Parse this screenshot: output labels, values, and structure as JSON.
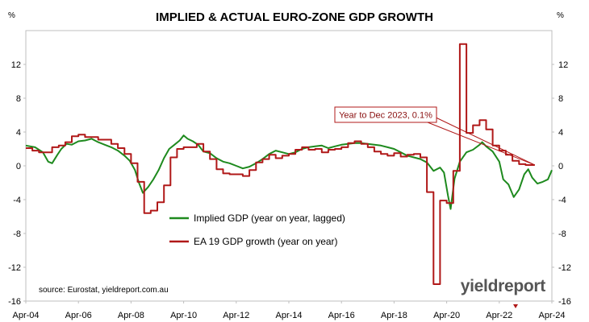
{
  "chart_data": {
    "type": "line",
    "title": "IMPLIED & ACTUAL EURO-ZONE GDP GROWTH",
    "left_axis_unit": "%",
    "right_axis_unit": "%",
    "ylim": [
      -16,
      16
    ],
    "yticks": [
      -16,
      -12,
      -8,
      -4,
      0,
      4,
      8,
      12
    ],
    "xlim": [
      2004.25,
      2024.25
    ],
    "xticks": [
      {
        "x": 2004.25,
        "label": "Apr-04"
      },
      {
        "x": 2006.25,
        "label": "Apr-06"
      },
      {
        "x": 2008.25,
        "label": "Apr-08"
      },
      {
        "x": 2010.25,
        "label": "Apr-10"
      },
      {
        "x": 2012.25,
        "label": "Apr-12"
      },
      {
        "x": 2014.25,
        "label": "Apr-14"
      },
      {
        "x": 2016.25,
        "label": "Apr-16"
      },
      {
        "x": 2018.25,
        "label": "Apr-18"
      },
      {
        "x": 2020.25,
        "label": "Apr-20"
      },
      {
        "x": 2022.25,
        "label": "Apr-22"
      },
      {
        "x": 2024.25,
        "label": "Apr-24"
      }
    ],
    "grid": false,
    "legend_position": "lower-left",
    "series": [
      {
        "name": "Implied GDP (year on year, lagged)",
        "color": "#1e8a1e",
        "points": [
          [
            2004.25,
            2.4
          ],
          [
            2004.6,
            2.2
          ],
          [
            2004.9,
            1.6
          ],
          [
            2005.1,
            0.5
          ],
          [
            2005.25,
            0.3
          ],
          [
            2005.45,
            1.3
          ],
          [
            2005.6,
            2.0
          ],
          [
            2005.8,
            2.6
          ],
          [
            2006.0,
            2.5
          ],
          [
            2006.25,
            2.9
          ],
          [
            2006.5,
            3.0
          ],
          [
            2006.75,
            3.2
          ],
          [
            2007.0,
            2.8
          ],
          [
            2007.25,
            2.5
          ],
          [
            2007.5,
            2.2
          ],
          [
            2007.75,
            1.8
          ],
          [
            2008.0,
            1.2
          ],
          [
            2008.2,
            0.6
          ],
          [
            2008.4,
            -0.5
          ],
          [
            2008.55,
            -2.0
          ],
          [
            2008.7,
            -3.2
          ],
          [
            2008.9,
            -2.5
          ],
          [
            2009.1,
            -1.6
          ],
          [
            2009.3,
            -0.5
          ],
          [
            2009.5,
            0.9
          ],
          [
            2009.7,
            2.0
          ],
          [
            2009.9,
            2.5
          ],
          [
            2010.1,
            3.0
          ],
          [
            2010.25,
            3.6
          ],
          [
            2010.4,
            3.2
          ],
          [
            2010.6,
            2.9
          ],
          [
            2010.8,
            2.5
          ],
          [
            2011.0,
            1.7
          ],
          [
            2011.25,
            1.5
          ],
          [
            2011.5,
            0.9
          ],
          [
            2011.75,
            0.5
          ],
          [
            2012.0,
            0.3
          ],
          [
            2012.25,
            0.0
          ],
          [
            2012.5,
            -0.3
          ],
          [
            2012.75,
            -0.1
          ],
          [
            2013.0,
            0.3
          ],
          [
            2013.25,
            0.8
          ],
          [
            2013.5,
            1.4
          ],
          [
            2013.75,
            1.8
          ],
          [
            2014.0,
            1.6
          ],
          [
            2014.25,
            1.4
          ],
          [
            2014.5,
            1.6
          ],
          [
            2014.75,
            2.0
          ],
          [
            2015.0,
            2.2
          ],
          [
            2015.25,
            2.3
          ],
          [
            2015.5,
            2.4
          ],
          [
            2015.75,
            2.1
          ],
          [
            2016.0,
            2.3
          ],
          [
            2016.25,
            2.5
          ],
          [
            2016.5,
            2.6
          ],
          [
            2016.75,
            2.7
          ],
          [
            2017.0,
            2.7
          ],
          [
            2017.25,
            2.6
          ],
          [
            2017.5,
            2.5
          ],
          [
            2017.75,
            2.4
          ],
          [
            2018.0,
            2.2
          ],
          [
            2018.25,
            2.0
          ],
          [
            2018.5,
            1.6
          ],
          [
            2018.75,
            1.2
          ],
          [
            2019.0,
            1.0
          ],
          [
            2019.25,
            0.8
          ],
          [
            2019.5,
            0.4
          ],
          [
            2019.75,
            -0.6
          ],
          [
            2020.0,
            -0.2
          ],
          [
            2020.15,
            -0.8
          ],
          [
            2020.3,
            -3.5
          ],
          [
            2020.4,
            -5.1
          ],
          [
            2020.55,
            -1.5
          ],
          [
            2020.75,
            0.5
          ],
          [
            2021.0,
            1.6
          ],
          [
            2021.25,
            1.9
          ],
          [
            2021.5,
            2.5
          ],
          [
            2021.6,
            2.8
          ],
          [
            2021.75,
            2.3
          ],
          [
            2022.0,
            1.7
          ],
          [
            2022.25,
            0.5
          ],
          [
            2022.4,
            -1.6
          ],
          [
            2022.6,
            -2.2
          ],
          [
            2022.8,
            -3.7
          ],
          [
            2023.0,
            -2.8
          ],
          [
            2023.2,
            -1.0
          ],
          [
            2023.35,
            -0.4
          ],
          [
            2023.5,
            -1.4
          ],
          [
            2023.7,
            -2.1
          ],
          [
            2023.9,
            -1.9
          ],
          [
            2024.1,
            -1.6
          ],
          [
            2024.25,
            -0.5
          ]
        ]
      },
      {
        "name": "EA 19 GDP growth (year on year)",
        "color": "#b01818",
        "points": [
          [
            2004.25,
            2.1
          ],
          [
            2004.5,
            2.1
          ],
          [
            2004.5,
            1.8
          ],
          [
            2004.75,
            1.8
          ],
          [
            2004.75,
            1.6
          ],
          [
            2005.25,
            1.6
          ],
          [
            2005.25,
            2.2
          ],
          [
            2005.5,
            2.2
          ],
          [
            2005.5,
            2.4
          ],
          [
            2005.75,
            2.4
          ],
          [
            2005.75,
            2.8
          ],
          [
            2006.0,
            2.8
          ],
          [
            2006.0,
            3.5
          ],
          [
            2006.25,
            3.5
          ],
          [
            2006.25,
            3.7
          ],
          [
            2006.5,
            3.7
          ],
          [
            2006.5,
            3.4
          ],
          [
            2007.0,
            3.4
          ],
          [
            2007.0,
            3.1
          ],
          [
            2007.5,
            3.1
          ],
          [
            2007.5,
            2.6
          ],
          [
            2007.75,
            2.6
          ],
          [
            2007.75,
            2.1
          ],
          [
            2008.0,
            2.1
          ],
          [
            2008.0,
            1.4
          ],
          [
            2008.25,
            1.4
          ],
          [
            2008.25,
            0.3
          ],
          [
            2008.5,
            0.3
          ],
          [
            2008.5,
            -1.9
          ],
          [
            2008.75,
            -1.9
          ],
          [
            2008.75,
            -5.6
          ],
          [
            2009.0,
            -5.6
          ],
          [
            2009.0,
            -5.3
          ],
          [
            2009.25,
            -5.3
          ],
          [
            2009.25,
            -4.3
          ],
          [
            2009.5,
            -4.3
          ],
          [
            2009.5,
            -2.3
          ],
          [
            2009.75,
            -2.3
          ],
          [
            2009.75,
            1.0
          ],
          [
            2010.0,
            1.0
          ],
          [
            2010.0,
            2.0
          ],
          [
            2010.25,
            2.0
          ],
          [
            2010.25,
            2.2
          ],
          [
            2010.75,
            2.2
          ],
          [
            2010.75,
            2.6
          ],
          [
            2011.0,
            2.6
          ],
          [
            2011.0,
            1.7
          ],
          [
            2011.25,
            1.7
          ],
          [
            2011.25,
            0.8
          ],
          [
            2011.5,
            0.8
          ],
          [
            2011.5,
            -0.4
          ],
          [
            2011.75,
            -0.4
          ],
          [
            2011.75,
            -0.9
          ],
          [
            2012.0,
            -0.9
          ],
          [
            2012.0,
            -1.0
          ],
          [
            2012.5,
            -1.0
          ],
          [
            2012.5,
            -1.2
          ],
          [
            2012.75,
            -1.2
          ],
          [
            2012.75,
            -0.5
          ],
          [
            2013.0,
            -0.5
          ],
          [
            2013.0,
            0.4
          ],
          [
            2013.25,
            0.4
          ],
          [
            2013.25,
            0.8
          ],
          [
            2013.5,
            0.8
          ],
          [
            2013.5,
            1.3
          ],
          [
            2013.75,
            1.3
          ],
          [
            2013.75,
            0.9
          ],
          [
            2014.0,
            0.9
          ],
          [
            2014.0,
            1.2
          ],
          [
            2014.25,
            1.2
          ],
          [
            2014.25,
            1.4
          ],
          [
            2014.5,
            1.4
          ],
          [
            2014.5,
            1.9
          ],
          [
            2014.75,
            1.9
          ],
          [
            2014.75,
            2.2
          ],
          [
            2015.0,
            2.2
          ],
          [
            2015.0,
            1.9
          ],
          [
            2015.25,
            1.9
          ],
          [
            2015.25,
            2.0
          ],
          [
            2015.5,
            2.0
          ],
          [
            2015.5,
            1.6
          ],
          [
            2015.75,
            1.6
          ],
          [
            2015.75,
            1.9
          ],
          [
            2016.0,
            1.9
          ],
          [
            2016.0,
            2.0
          ],
          [
            2016.25,
            2.0
          ],
          [
            2016.25,
            2.2
          ],
          [
            2016.5,
            2.2
          ],
          [
            2016.5,
            2.7
          ],
          [
            2016.75,
            2.7
          ],
          [
            2016.75,
            2.9
          ],
          [
            2017.0,
            2.9
          ],
          [
            2017.0,
            2.6
          ],
          [
            2017.25,
            2.6
          ],
          [
            2017.25,
            2.2
          ],
          [
            2017.5,
            2.2
          ],
          [
            2017.5,
            1.7
          ],
          [
            2017.75,
            1.7
          ],
          [
            2017.75,
            1.4
          ],
          [
            2018.0,
            1.4
          ],
          [
            2018.0,
            1.2
          ],
          [
            2018.25,
            1.2
          ],
          [
            2018.25,
            1.5
          ],
          [
            2018.5,
            1.5
          ],
          [
            2018.5,
            1.1
          ],
          [
            2018.75,
            1.1
          ],
          [
            2018.75,
            1.3
          ],
          [
            2019.0,
            1.3
          ],
          [
            2019.0,
            1.4
          ],
          [
            2019.25,
            1.4
          ],
          [
            2019.25,
            1.0
          ],
          [
            2019.5,
            1.0
          ],
          [
            2019.5,
            -3.1
          ],
          [
            2019.75,
            -3.1
          ],
          [
            2019.75,
            -14.0
          ],
          [
            2020.0,
            -14.0
          ],
          [
            2020.0,
            -4.1
          ],
          [
            2020.25,
            -4.1
          ],
          [
            2020.25,
            -4.4
          ],
          [
            2020.5,
            -4.4
          ],
          [
            2020.5,
            -0.6
          ],
          [
            2020.75,
            -0.6
          ],
          [
            2020.75,
            14.4
          ],
          [
            2021.0,
            14.4
          ],
          [
            2021.0,
            3.9
          ],
          [
            2021.25,
            3.9
          ],
          [
            2021.25,
            4.8
          ],
          [
            2021.5,
            4.8
          ],
          [
            2021.5,
            5.4
          ],
          [
            2021.75,
            5.4
          ],
          [
            2021.75,
            4.3
          ],
          [
            2022.0,
            4.3
          ],
          [
            2022.0,
            2.4
          ],
          [
            2022.25,
            2.4
          ],
          [
            2022.25,
            1.8
          ],
          [
            2022.5,
            1.8
          ],
          [
            2022.5,
            1.3
          ],
          [
            2022.75,
            1.3
          ],
          [
            2022.75,
            0.6
          ],
          [
            2023.0,
            0.6
          ],
          [
            2023.0,
            0.2
          ],
          [
            2023.25,
            0.2
          ],
          [
            2023.25,
            0.1
          ],
          [
            2023.6,
            0.1
          ]
        ]
      }
    ],
    "annotation": {
      "text": "Year to Dec 2023, 0.1%",
      "target": [
        2023.6,
        0.1
      ]
    },
    "source_note": "source: Eurostat, yieldreport.com.au",
    "brand": "yieldreport"
  }
}
